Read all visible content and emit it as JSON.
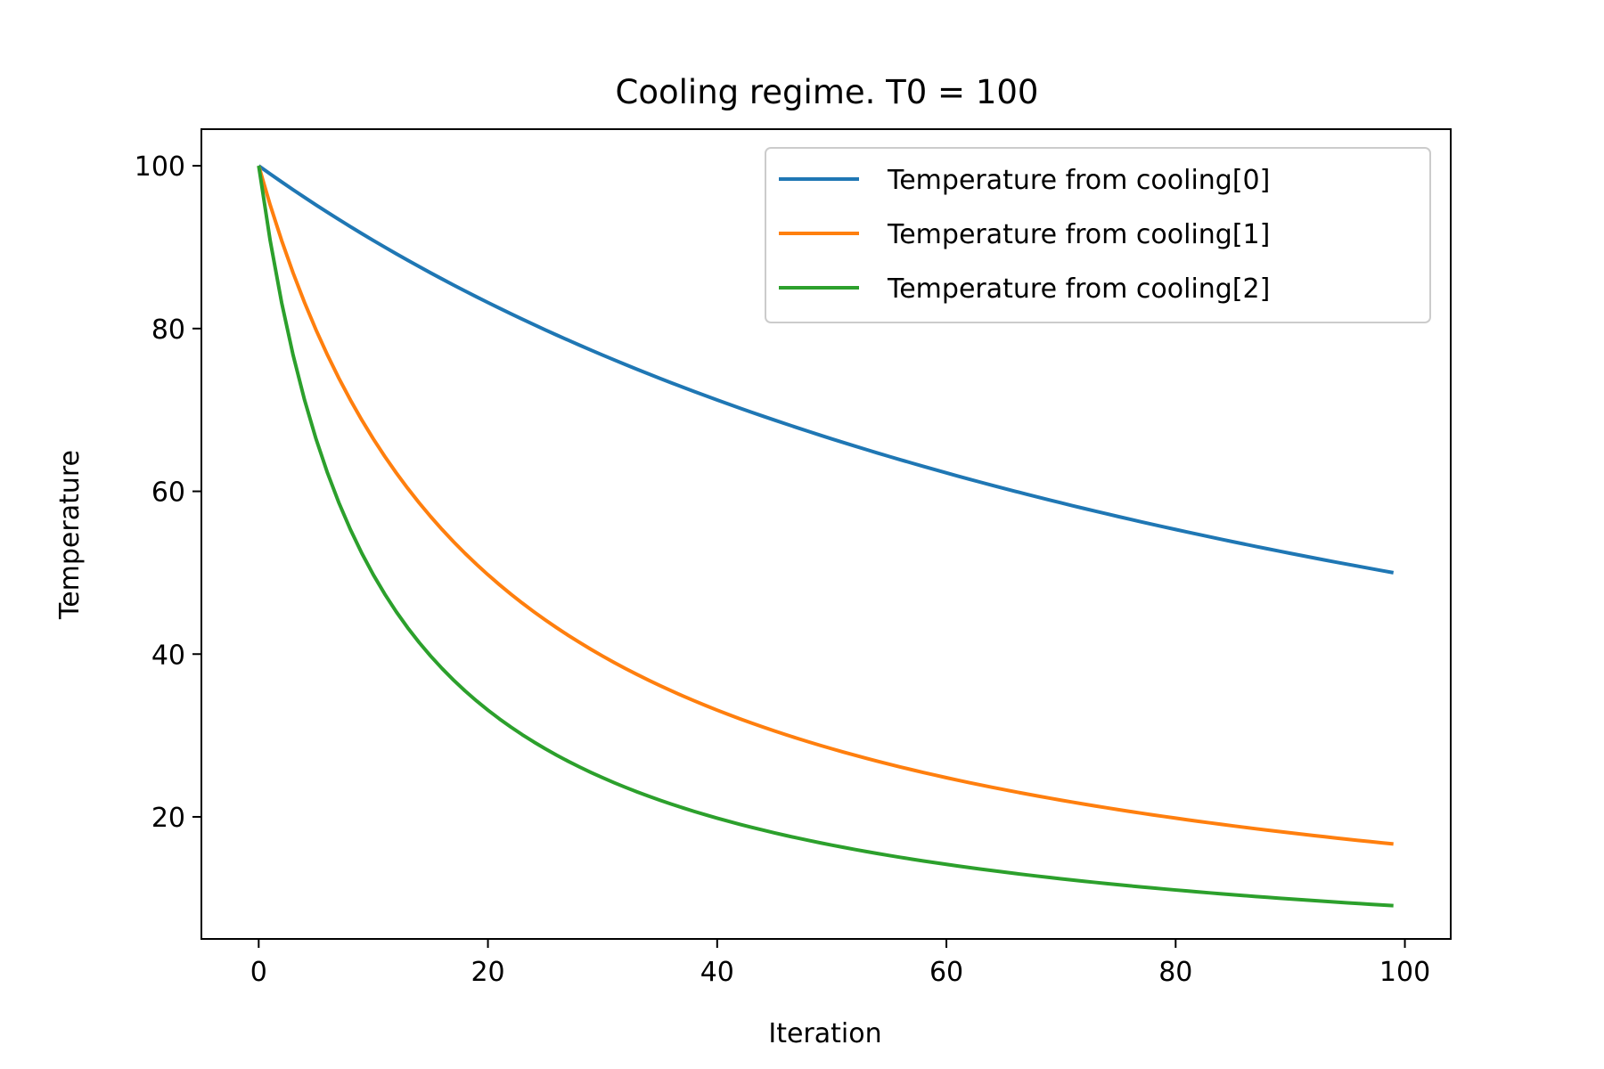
{
  "chart_data": {
    "type": "line",
    "title": "Cooling regime. T0 = 100",
    "xlabel": "Iteration",
    "ylabel": "Temperature",
    "xlim": [
      -5,
      104
    ],
    "ylim": [
      5,
      104.5
    ],
    "xticks": [
      0,
      20,
      40,
      60,
      80,
      100
    ],
    "yticks": [
      20,
      40,
      60,
      80,
      100
    ],
    "grid": false,
    "legend_position": "top-right",
    "x_range": [
      0,
      99
    ],
    "series": [
      {
        "name": "Temperature from cooling[0]",
        "color": "#1f77b4",
        "model": "T0 / (1 + a*i)",
        "T0": 100,
        "a": 0.0101,
        "sample_points": [
          [
            0,
            100
          ],
          [
            20,
            83.2
          ],
          [
            40,
            71.2
          ],
          [
            60,
            62.3
          ],
          [
            80,
            55.3
          ],
          [
            99,
            50.0
          ]
        ]
      },
      {
        "name": "Temperature from cooling[1]",
        "color": "#ff7f0e",
        "model": "T0 / (1 + a*i)",
        "T0": 100,
        "a": 0.0505,
        "sample_points": [
          [
            0,
            100
          ],
          [
            20,
            49.8
          ],
          [
            40,
            33.1
          ],
          [
            60,
            24.8
          ],
          [
            80,
            19.8
          ],
          [
            99,
            16.7
          ]
        ]
      },
      {
        "name": "Temperature from cooling[2]",
        "color": "#2ca02c",
        "model": "T0 / (1 + a*i)",
        "T0": 100,
        "a": 0.101,
        "sample_points": [
          [
            0,
            100
          ],
          [
            20,
            33.1
          ],
          [
            40,
            19.8
          ],
          [
            60,
            14.2
          ],
          [
            80,
            11.0
          ],
          [
            99,
            9.1
          ]
        ]
      }
    ]
  }
}
